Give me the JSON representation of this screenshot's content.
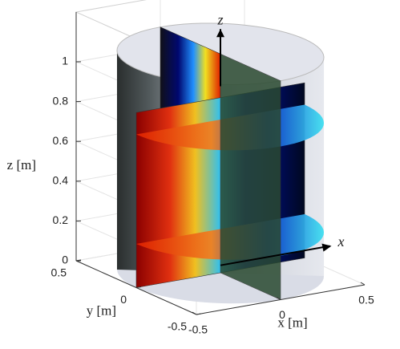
{
  "chart_data": {
    "type": "surface",
    "xlabel": "x [m]",
    "ylabel": "y [m]",
    "zlabel": "z [m]",
    "xlim": [
      -0.5,
      0.5
    ],
    "ylim": [
      -0.5,
      0.5
    ],
    "zlim": [
      0,
      1.25
    ],
    "xticks": [
      -0.5,
      0,
      0.5
    ],
    "yticks": [
      -0.5,
      0,
      0.5
    ],
    "zticks": [
      0,
      0.2,
      0.4,
      0.6,
      0.8,
      1
    ],
    "annotations": [
      "z",
      "x"
    ],
    "grid": true
  }
}
